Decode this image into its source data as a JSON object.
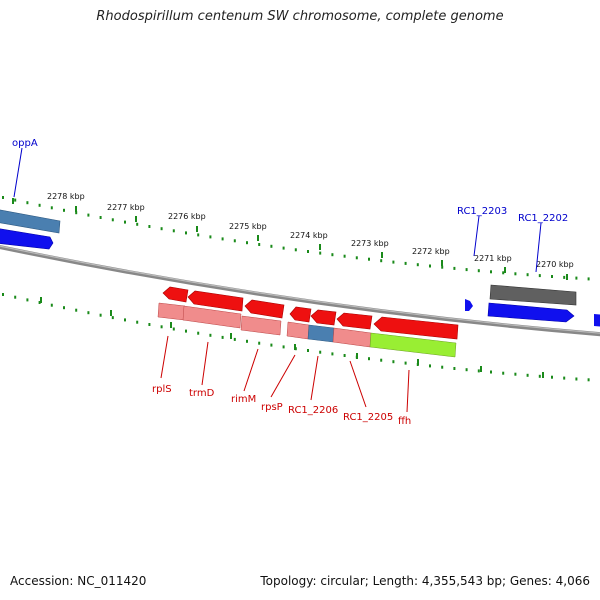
{
  "title": "Rhodospirillum centenum SW chromosome, complete genome",
  "footer": {
    "accession": "Accession: NC_011420",
    "summary": "Topology: circular; Length: 4,355,543 bp; Genes: 4,066"
  },
  "scale_ticks": [
    "2278 kbp",
    "2277 kbp",
    "2276 kbp",
    "2275 kbp",
    "2274 kbp",
    "2273 kbp",
    "2272 kbp",
    "2271 kbp",
    "2270 kbp"
  ],
  "gene_labels": {
    "oppA": "oppA",
    "RC1_2203": "RC1_2203",
    "RC1_2202": "RC1_2202",
    "rplS": "rplS",
    "trmD": "trmD",
    "rimM": "rimM",
    "rpsP": "rpsP",
    "RC1_2206": "RC1_2206",
    "RC1_2205": "RC1_2205",
    "ffh": "ffh"
  },
  "colors": {
    "forward_gene": "#1010ee",
    "reverse_gene": "#ee1010",
    "reverse_gene_light": "#f08c8c",
    "blue_feature": "#4a7fb0",
    "gray_feature": "#606060",
    "green_feature": "#99ee33",
    "tick_green": "#1a8a1a",
    "backbone": "#888888",
    "label_blue": "#0000cc",
    "label_red": "#cc0000"
  }
}
